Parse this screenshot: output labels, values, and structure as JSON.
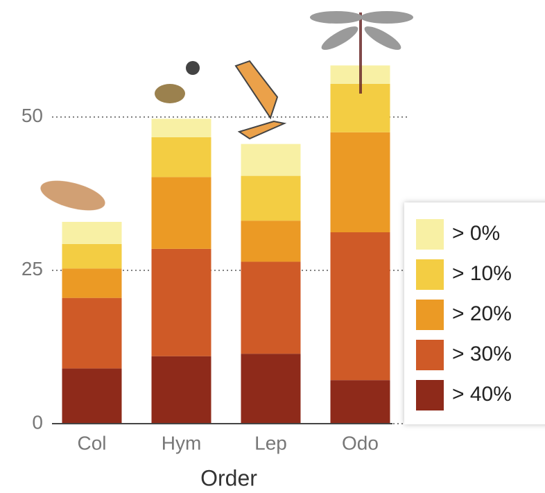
{
  "chart_data": {
    "type": "stacked-bar",
    "x_label": "Order",
    "categories": [
      "Col",
      "Hym",
      "Lep",
      "Odo"
    ],
    "series": [
      {
        "name": "> 40%",
        "color": "#8e2a1a",
        "values": [
          9,
          11,
          11.4,
          7.1
        ]
      },
      {
        "name": "> 30%",
        "color": "#cf5a27",
        "values": [
          11.5,
          17.5,
          15,
          24.1
        ]
      },
      {
        "name": "> 20%",
        "color": "#eb9a25",
        "values": [
          4.8,
          11.7,
          6.7,
          16.3
        ]
      },
      {
        "name": "> 10%",
        "color": "#f3cd43",
        "values": [
          4,
          6.5,
          7.3,
          7.9
        ]
      },
      {
        "name": "> 0%",
        "color": "#f8f0a4",
        "values": [
          3.6,
          3,
          5.2,
          3
        ]
      }
    ],
    "ylim": [
      0,
      65
    ],
    "yticks": [
      0,
      25,
      50
    ],
    "grid": true,
    "legend": "right"
  }
}
